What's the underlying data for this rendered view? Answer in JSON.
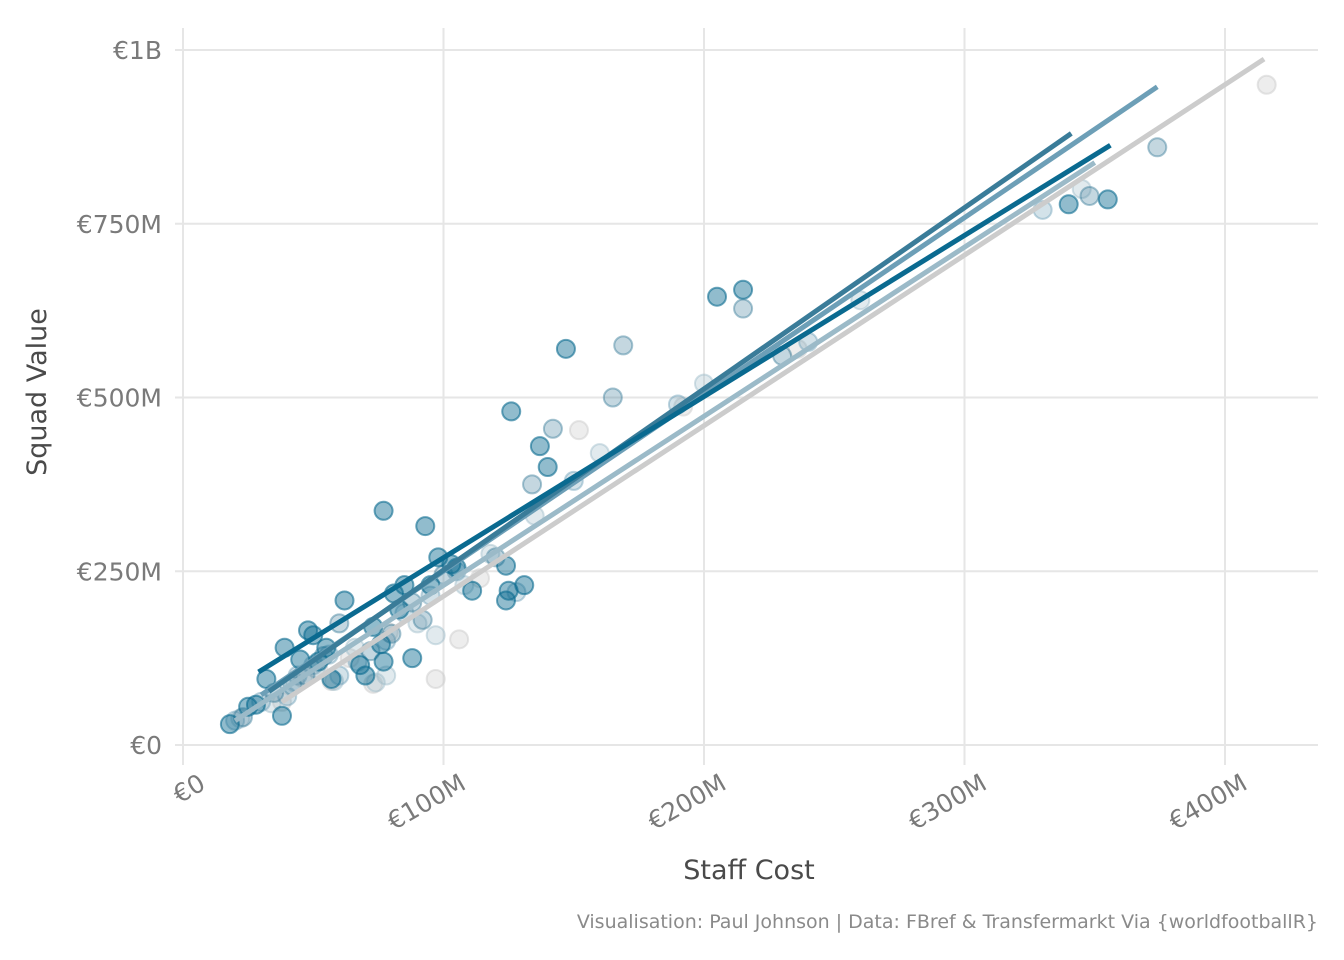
{
  "chart_data": {
    "type": "scatter",
    "title": "",
    "xlabel": "Staff Cost",
    "ylabel": "Squad Value",
    "caption": "Visualisation: Paul Johnson | Data: FBref & Transfermarkt Via {worldfootballR}",
    "xlim": [
      0,
      435
    ],
    "ylim": [
      -25,
      1025
    ],
    "x_unit": "€M",
    "y_unit": "€M",
    "grid": true,
    "legend": "none",
    "x_ticks": [
      {
        "value": 0,
        "label": "€0"
      },
      {
        "value": 100,
        "label": "€100M"
      },
      {
        "value": 200,
        "label": "€200M"
      },
      {
        "value": 300,
        "label": "€300M"
      },
      {
        "value": 400,
        "label": "€400M"
      }
    ],
    "y_ticks": [
      {
        "value": 0,
        "label": "€0"
      },
      {
        "value": 250,
        "label": "€250M"
      },
      {
        "value": 500,
        "label": "€500M"
      },
      {
        "value": 750,
        "label": "€750M"
      },
      {
        "value": 1000,
        "label": "€1B"
      }
    ],
    "series": [
      {
        "color": "#0a6a90",
        "opacity": 0.45,
        "points": [
          [
            18,
            30
          ],
          [
            25,
            55
          ],
          [
            28,
            58
          ],
          [
            32,
            95
          ],
          [
            38,
            42
          ],
          [
            39,
            140
          ],
          [
            45,
            123
          ],
          [
            48,
            165
          ],
          [
            50,
            158
          ],
          [
            52,
            120
          ],
          [
            55,
            140
          ],
          [
            57,
            95
          ],
          [
            62,
            208
          ],
          [
            68,
            115
          ],
          [
            70,
            100
          ],
          [
            73,
            170
          ],
          [
            76,
            145
          ],
          [
            77,
            120
          ],
          [
            77,
            337
          ],
          [
            81,
            218
          ],
          [
            83,
            195
          ],
          [
            85,
            230
          ],
          [
            88,
            125
          ],
          [
            93,
            315
          ],
          [
            95,
            230
          ],
          [
            98,
            270
          ],
          [
            103,
            260
          ],
          [
            105,
            255
          ],
          [
            111,
            222
          ],
          [
            124,
            258
          ],
          [
            124,
            208
          ],
          [
            125,
            222
          ],
          [
            126,
            480
          ],
          [
            131,
            230
          ],
          [
            137,
            430
          ],
          [
            140,
            400
          ],
          [
            147,
            570
          ],
          [
            205,
            645
          ],
          [
            215,
            655
          ],
          [
            340,
            778
          ],
          [
            355,
            785
          ]
        ],
        "trend": [
          [
            29,
            105
          ],
          [
            356,
            863
          ]
        ]
      },
      {
        "color": "#3a7c99",
        "opacity": 0.3,
        "points": [
          [
            23,
            40
          ],
          [
            35,
            75
          ],
          [
            42,
            85
          ],
          [
            47,
            100
          ],
          [
            54,
            128
          ],
          [
            60,
            175
          ],
          [
            72,
            135
          ],
          [
            80,
            160
          ],
          [
            88,
            205
          ],
          [
            92,
            180
          ],
          [
            100,
            245
          ],
          [
            120,
            270
          ],
          [
            134,
            375
          ],
          [
            142,
            455
          ],
          [
            165,
            500
          ],
          [
            169,
            575
          ],
          [
            215,
            628
          ],
          [
            230,
            560
          ],
          [
            348,
            790
          ],
          [
            374,
            860
          ]
        ],
        "trend": [
          [
            33,
            77
          ],
          [
            341,
            880
          ]
        ]
      },
      {
        "color": "#6d9fb7",
        "opacity": 0.3,
        "points": [
          [
            20,
            35
          ],
          [
            30,
            62
          ],
          [
            40,
            70
          ],
          [
            44,
            100
          ],
          [
            50,
            115
          ],
          [
            56,
            130
          ],
          [
            60,
            100
          ],
          [
            67,
            120
          ],
          [
            78,
            150
          ],
          [
            85,
            190
          ],
          [
            95,
            215
          ],
          [
            105,
            250
          ],
          [
            128,
            220
          ],
          [
            150,
            380
          ],
          [
            190,
            490
          ],
          [
            240,
            580
          ],
          [
            330,
            770
          ]
        ],
        "trend": [
          [
            30,
            72
          ],
          [
            374,
            947
          ]
        ]
      },
      {
        "color": "#9bbac8",
        "opacity": 0.3,
        "points": [
          [
            22,
            38
          ],
          [
            34,
            60
          ],
          [
            43,
            90
          ],
          [
            51,
            110
          ],
          [
            58,
            92
          ],
          [
            66,
            140
          ],
          [
            74,
            90
          ],
          [
            78,
            100
          ],
          [
            90,
            175
          ],
          [
            97,
            158
          ],
          [
            108,
            230
          ],
          [
            118,
            275
          ],
          [
            135,
            330
          ],
          [
            160,
            420
          ],
          [
            200,
            520
          ],
          [
            260,
            640
          ],
          [
            345,
            800
          ]
        ],
        "trend": [
          [
            20,
            35
          ],
          [
            350,
            838
          ]
        ]
      },
      {
        "color": "#cccccc",
        "opacity": 0.35,
        "points": [
          [
            38,
            62
          ],
          [
            46,
            96
          ],
          [
            52,
            108
          ],
          [
            57,
            92
          ],
          [
            64,
            125
          ],
          [
            73,
            88
          ],
          [
            79,
            162
          ],
          [
            97,
            95
          ],
          [
            106,
            152
          ],
          [
            114,
            240
          ],
          [
            152,
            453
          ],
          [
            192,
            487
          ],
          [
            236,
            570
          ],
          [
            416,
            950
          ]
        ],
        "trend": [
          [
            38,
            62
          ],
          [
            415,
            987
          ]
        ]
      }
    ]
  }
}
